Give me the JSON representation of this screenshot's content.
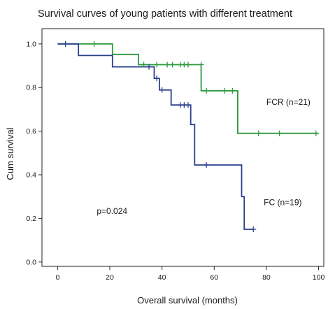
{
  "chart_data": {
    "type": "line",
    "subtype": "kaplan-meier step",
    "title": "Survival curves of young patients with different treatment",
    "xlabel": "Overall survival (months)",
    "ylabel": "Cum survival",
    "xlim": [
      -6,
      102
    ],
    "ylim": [
      -0.02,
      1.07
    ],
    "xticks": [
      0,
      20,
      40,
      60,
      80,
      100
    ],
    "yticks": [
      0.0,
      0.2,
      0.4,
      0.6,
      0.8,
      1.0
    ],
    "ytick_labels": [
      "0.0",
      "0.2",
      "0.4",
      "0.6",
      "0.8",
      "1.0"
    ],
    "grid": false,
    "annotation": "p=0.024",
    "annotation_position": {
      "x": 15,
      "y": 0.22
    },
    "series": [
      {
        "name": "FCR (n=21)",
        "color": "#2a9a3c",
        "label_position": {
          "x": 80,
          "y": 0.72
        },
        "steps": [
          [
            0,
            1.0
          ],
          [
            21,
            0.952
          ],
          [
            31,
            0.905
          ],
          [
            55,
            0.785
          ],
          [
            69,
            0.59
          ],
          [
            100,
            0.59
          ]
        ],
        "censored": [
          [
            3,
            1.0
          ],
          [
            14,
            1.0
          ],
          [
            33,
            0.905
          ],
          [
            38,
            0.905
          ],
          [
            42,
            0.905
          ],
          [
            44,
            0.905
          ],
          [
            47,
            0.905
          ],
          [
            48.5,
            0.905
          ],
          [
            50,
            0.905
          ],
          [
            55,
            0.905
          ],
          [
            57,
            0.785
          ],
          [
            64,
            0.785
          ],
          [
            67,
            0.785
          ],
          [
            77,
            0.59
          ],
          [
            85,
            0.59
          ],
          [
            99,
            0.59
          ]
        ]
      },
      {
        "name": "FC (n=19)",
        "color": "#2a3f8f",
        "label_position": {
          "x": 79,
          "y": 0.26
        },
        "steps": [
          [
            0,
            1.0
          ],
          [
            8,
            0.947
          ],
          [
            21,
            0.895
          ],
          [
            37,
            0.842
          ],
          [
            39,
            0.789
          ],
          [
            43.5,
            0.72
          ],
          [
            51,
            0.63
          ],
          [
            52.5,
            0.445
          ],
          [
            70.5,
            0.3
          ],
          [
            71.5,
            0.15
          ],
          [
            75,
            0.15
          ]
        ],
        "censored": [
          [
            3,
            1.0
          ],
          [
            35,
            0.895
          ],
          [
            38,
            0.842
          ],
          [
            40,
            0.789
          ],
          [
            47,
            0.72
          ],
          [
            48.5,
            0.72
          ],
          [
            50,
            0.72
          ],
          [
            57,
            0.445
          ],
          [
            75,
            0.15
          ]
        ]
      }
    ]
  }
}
